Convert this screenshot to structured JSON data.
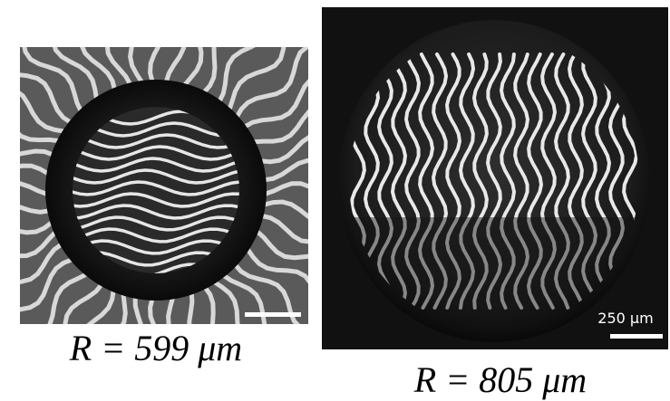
{
  "panels": [
    {
      "caption": "R = 599 μm"
    },
    {
      "caption": "R = 805 μm",
      "scale_bar_label": "250 μm"
    }
  ]
}
